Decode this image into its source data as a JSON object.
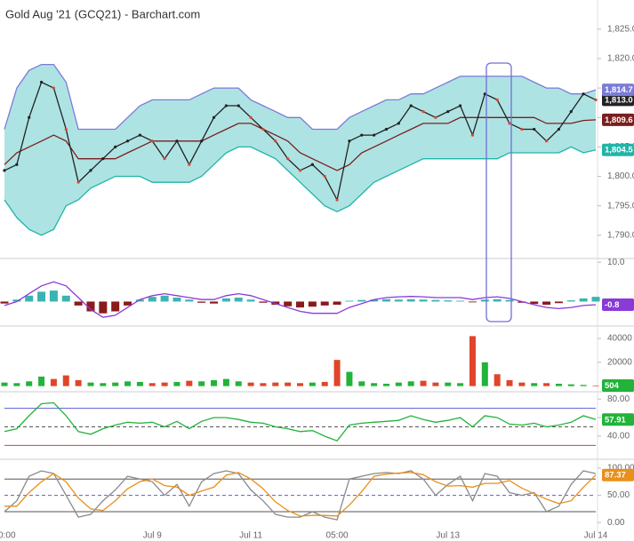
{
  "title": "Gold Aug '21 (GCQ21) - Barchart.com",
  "chart_data": [
    {
      "type": "bollinger",
      "ylim": [
        1786.2,
        1829.2
      ],
      "band_color": "#aee3e3",
      "yticks": [
        {
          "value": 1790,
          "label": "1,790.0"
        },
        {
          "value": 1795,
          "label": "1,795.0"
        },
        {
          "value": 1800,
          "label": "1,800.0"
        },
        {
          "value": 1805,
          "label": "1,805.0"
        },
        {
          "value": 1810,
          "label": "1,810.0"
        },
        {
          "value": 1815,
          "label": "1,815.0"
        },
        {
          "value": 1820,
          "label": "1,820.0"
        },
        {
          "value": 1825,
          "label": "1,825.0"
        }
      ],
      "series": [
        {
          "name": "Close",
          "color": "#222222",
          "last_label": "1,813.0",
          "values": [
            1801,
            1802,
            1810,
            1816,
            1815,
            1808,
            1799,
            1801,
            1803,
            1805,
            1806,
            1807,
            1806,
            1803,
            1806,
            1802,
            1806,
            1810,
            1812,
            1812,
            1810,
            1808,
            1806,
            1803,
            1801,
            1802,
            1800,
            1796,
            1806,
            1807,
            1807,
            1808,
            1809,
            1812,
            1811,
            1810,
            1811,
            1812,
            1807,
            1814,
            1813,
            1809,
            1808,
            1808,
            1806,
            1808,
            1811,
            1814,
            1813
          ]
        },
        {
          "name": "Upper",
          "color": "#7b7bd8",
          "last_label": "1,814.7",
          "values": [
            1808,
            1815,
            1818,
            1819,
            1819,
            1816,
            1808,
            1808,
            1808,
            1808,
            1810,
            1812,
            1813,
            1813,
            1813,
            1813,
            1814,
            1815,
            1815,
            1815,
            1813,
            1812,
            1811,
            1810,
            1810,
            1808,
            1808,
            1808,
            1810,
            1811,
            1812,
            1813,
            1813,
            1814,
            1814,
            1815,
            1816,
            1817,
            1817,
            1817,
            1817,
            1817,
            1817,
            1816,
            1815,
            1815,
            1814,
            1814,
            1814.7
          ]
        },
        {
          "name": "Middle",
          "color": "#7b1e1e",
          "last_label": "1,809.6",
          "values": [
            1802,
            1804,
            1805,
            1806,
            1807,
            1806,
            1803,
            1803,
            1803,
            1803,
            1804,
            1805,
            1806,
            1806,
            1806,
            1806,
            1806,
            1807,
            1808,
            1809,
            1809,
            1808,
            1807,
            1806,
            1804,
            1803,
            1802,
            1801,
            1802,
            1804,
            1805,
            1806,
            1807,
            1808,
            1809,
            1809,
            1809,
            1810,
            1810,
            1810,
            1810,
            1810,
            1810,
            1810,
            1809,
            1809,
            1809,
            1809.5,
            1809.6
          ]
        },
        {
          "name": "Lower",
          "color": "#1fb5a8",
          "last_label": "1,804.5",
          "values": [
            1796,
            1793,
            1791,
            1790,
            1791,
            1795,
            1796,
            1798,
            1799,
            1800,
            1800,
            1800,
            1799,
            1799,
            1799,
            1799,
            1800,
            1802,
            1804,
            1805,
            1805,
            1804,
            1803,
            1801,
            1799,
            1797,
            1795,
            1794,
            1795,
            1797,
            1799,
            1800,
            1801,
            1802,
            1803,
            1803,
            1803,
            1803,
            1803,
            1803,
            1803,
            1804,
            1804,
            1804,
            1804,
            1804,
            1805,
            1804,
            1804.5
          ]
        }
      ]
    },
    {
      "type": "macd",
      "ylim": [
        -6,
        10.5
      ],
      "yticks": [
        {
          "value": 10,
          "label": "10.0"
        }
      ],
      "pos_color": "#3bb3b3",
      "neg_color": "#8b1a1a",
      "histogram": [
        -0.5,
        0.5,
        1.5,
        2.5,
        2.8,
        1.5,
        -1,
        -2.5,
        -3,
        -2.5,
        -1,
        0.5,
        1.2,
        1.5,
        1,
        0.5,
        -0.3,
        -0.5,
        0.8,
        1,
        0.5,
        -0.3,
        -0.8,
        -1.2,
        -1.5,
        -1.3,
        -1,
        -0.8,
        0.2,
        0.4,
        0.5,
        0.6,
        0.5,
        0.6,
        0.5,
        0.4,
        0.3,
        0.2,
        -0.2,
        0.5,
        0.6,
        0.4,
        -0.3,
        -0.6,
        -0.8,
        -0.4,
        0.3,
        0.8,
        1.2
      ],
      "series": [
        {
          "name": "MACD",
          "color": "#8a3ad6",
          "last_label": "-0.8",
          "values": [
            -1,
            0,
            2,
            4,
            5,
            4,
            1,
            -2,
            -4,
            -3.5,
            -1.5,
            0.5,
            1.5,
            2,
            1.5,
            1,
            0.5,
            0.5,
            1.5,
            2,
            1.5,
            0.5,
            -0.5,
            -1.5,
            -2.5,
            -3,
            -3,
            -3,
            -1.5,
            -0.5,
            0.5,
            1,
            1.2,
            1.3,
            1.2,
            1,
            1,
            1,
            0.5,
            1,
            1.2,
            0.8,
            0,
            -0.8,
            -1.5,
            -1.8,
            -1.5,
            -1,
            -0.8
          ]
        }
      ]
    },
    {
      "type": "volume",
      "ylim": [
        -4000,
        49000
      ],
      "yticks": [
        {
          "value": 20000,
          "label": "20000"
        },
        {
          "value": 40000,
          "label": "40000"
        }
      ],
      "up_color": "#22b33a",
      "down_color": "#e0452a",
      "badge_color": "#22b33a",
      "last_label": "504",
      "values": [
        3000,
        2500,
        4000,
        8000,
        6000,
        9000,
        5000,
        3000,
        2500,
        3000,
        4000,
        3500,
        2500,
        3000,
        3500,
        4500,
        4000,
        5000,
        6000,
        4000,
        3000,
        2500,
        3000,
        3000,
        2500,
        3000,
        3500,
        22000,
        12000,
        4000,
        2500,
        2000,
        3000,
        4000,
        4500,
        3000,
        3000,
        2500,
        42000,
        20000,
        10000,
        5000,
        3000,
        2500,
        2500,
        2000,
        1500,
        1000,
        504
      ]
    },
    {
      "type": "line",
      "ylim": [
        16,
        86
      ],
      "yticks": [
        {
          "value": 40,
          "label": "40.00"
        },
        {
          "value": 60,
          "label": "60.00"
        },
        {
          "value": 80,
          "label": "80.00"
        }
      ],
      "levels": [
        {
          "value": 70,
          "color": "#5a5ad6",
          "dashed": false
        },
        {
          "value": 50,
          "color": "#555555",
          "dashed": true
        },
        {
          "value": 30,
          "color": "#d04040",
          "dashed": false
        }
      ],
      "series": [
        {
          "name": "RSI",
          "color": "#22b33a",
          "last_label": "57.91",
          "values": [
            45,
            48,
            62,
            75,
            76,
            62,
            45,
            42,
            48,
            52,
            55,
            54,
            55,
            50,
            56,
            48,
            56,
            60,
            60,
            58,
            55,
            54,
            50,
            48,
            45,
            46,
            40,
            35,
            52,
            54,
            55,
            56,
            57,
            62,
            58,
            55,
            57,
            60,
            50,
            62,
            60,
            53,
            52,
            54,
            50,
            52,
            55,
            62,
            57.91
          ]
        }
      ]
    },
    {
      "type": "line",
      "ylim": [
        -16,
        113
      ],
      "yticks": [
        {
          "value": 0,
          "label": "0.00"
        },
        {
          "value": 50,
          "label": "50.00"
        },
        {
          "value": 100,
          "label": "100.00"
        }
      ],
      "levels": [
        {
          "value": 80,
          "color": "#555555",
          "dashed": false
        },
        {
          "value": 50,
          "color": "#5a5ad6",
          "dashed": true
        },
        {
          "value": 20,
          "color": "#555555",
          "dashed": false
        }
      ],
      "categories": [
        "00:00",
        null,
        null,
        null,
        null,
        null,
        null,
        null,
        null,
        null,
        null,
        null,
        "Jul 9",
        null,
        null,
        null,
        null,
        null,
        null,
        null,
        "Jul 11",
        null,
        null,
        null,
        null,
        null,
        null,
        "05:00",
        null,
        null,
        null,
        null,
        null,
        null,
        null,
        null,
        "Jul 13",
        null,
        null,
        null,
        null,
        null,
        null,
        null,
        null,
        null,
        null,
        null,
        "Jul 14"
      ],
      "series": [
        {
          "name": "%K",
          "color": "#8a8a8a",
          "values": [
            20,
            40,
            85,
            95,
            90,
            50,
            10,
            15,
            40,
            60,
            85,
            80,
            75,
            50,
            70,
            30,
            75,
            90,
            95,
            90,
            60,
            40,
            15,
            10,
            10,
            20,
            10,
            5,
            80,
            85,
            90,
            92,
            90,
            95,
            80,
            50,
            70,
            85,
            40,
            90,
            85,
            55,
            50,
            55,
            20,
            30,
            70,
            95,
            90
          ]
        },
        {
          "name": "%D",
          "color": "#e8901a",
          "last_label": "87.37",
          "values": [
            30,
            30,
            55,
            75,
            90,
            75,
            45,
            25,
            22,
            40,
            62,
            75,
            80,
            68,
            65,
            50,
            58,
            65,
            87,
            92,
            80,
            62,
            38,
            22,
            12,
            13,
            13,
            12,
            32,
            57,
            85,
            89,
            91,
            92,
            88,
            75,
            67,
            68,
            65,
            72,
            72,
            77,
            63,
            53,
            43,
            35,
            40,
            65,
            87.37
          ]
        }
      ]
    }
  ]
}
